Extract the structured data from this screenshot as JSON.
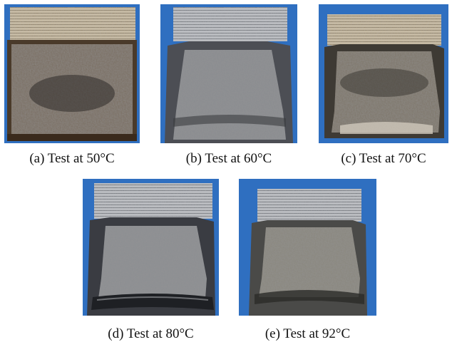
{
  "figure": {
    "panels": [
      {
        "id": "a",
        "caption": "(a) Test at 50°C"
      },
      {
        "id": "b",
        "caption": "(b) Test at 60°C"
      },
      {
        "id": "c",
        "caption": "(c) Test at 70°C"
      },
      {
        "id": "d",
        "caption": "(d) Test at 80°C"
      },
      {
        "id": "e",
        "caption": "(e) Test at 92°C"
      }
    ]
  }
}
